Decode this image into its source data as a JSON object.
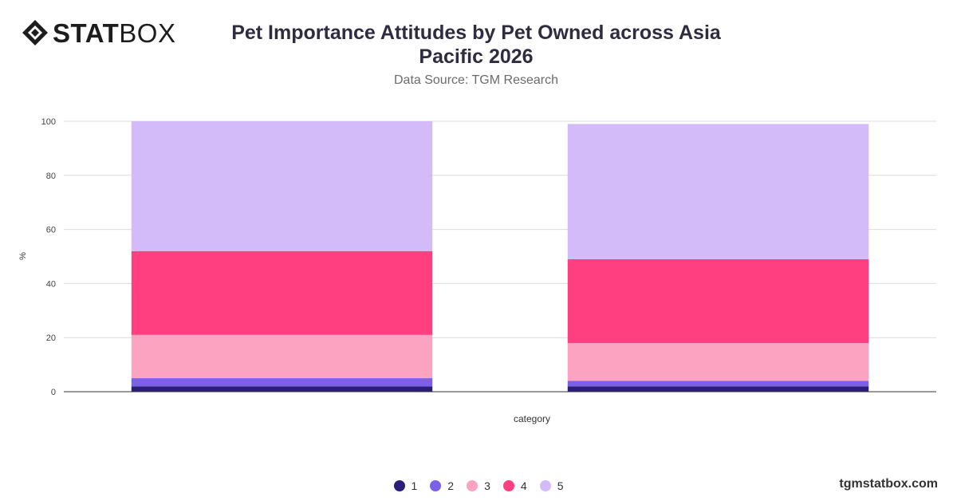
{
  "brand": {
    "logo_strong": "STAT",
    "logo_light": "BOX",
    "footer": "tgmstatbox.com"
  },
  "header": {
    "title_line1": "Pet Importance Attitudes by Pet Owned across Asia",
    "title_line2": "Pacific 2026",
    "subtitle": "Data Source: TGM Research"
  },
  "chart_data": {
    "type": "bar",
    "stacked": true,
    "categories": [
      "",
      ""
    ],
    "xlabel": "category",
    "ylabel": "%",
    "ylim": [
      0,
      100
    ],
    "yticks": [
      0,
      20,
      40,
      60,
      80,
      100
    ],
    "grid": true,
    "legend_position": "bottom",
    "series": [
      {
        "name": "1",
        "color": "#2b1d7a",
        "values": [
          2,
          2
        ]
      },
      {
        "name": "2",
        "color": "#7b61e8",
        "values": [
          3,
          2
        ]
      },
      {
        "name": "3",
        "color": "#fca3c2",
        "values": [
          16,
          14
        ]
      },
      {
        "name": "4",
        "color": "#ff3f80",
        "values": [
          31,
          31
        ]
      },
      {
        "name": "5",
        "color": "#d3baf9",
        "values": [
          48,
          50
        ]
      }
    ]
  }
}
